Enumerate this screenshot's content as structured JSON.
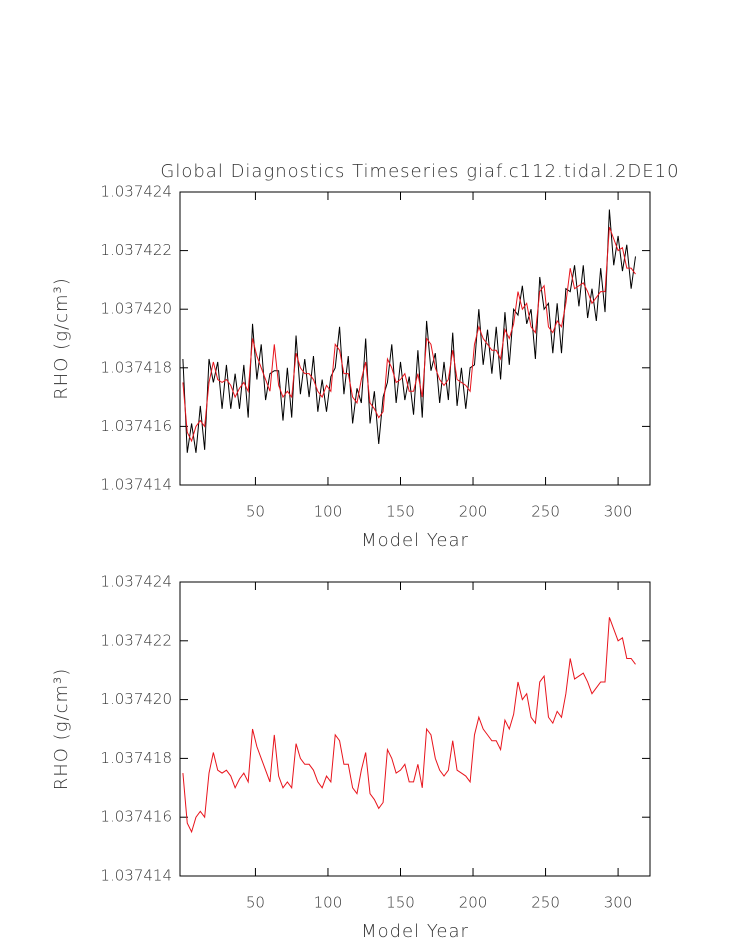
{
  "chart_data": [
    {
      "type": "line",
      "title": "Global Diagnostics Timeseries giaf.c112.tidal.2DE10",
      "xlabel": "Model Year",
      "ylabel": "RHO (g/cm³)",
      "xlim": [
        -2,
        322
      ],
      "xticks": [
        50,
        100,
        150,
        200,
        250,
        300
      ],
      "ylim": [
        1.037414,
        1.037424
      ],
      "yticks": [
        1.037414,
        1.037416,
        1.037418,
        {
          "value": 1.03742,
          "label": "1.037420"
        },
        1.037422,
        1.037424
      ],
      "x": [
        0,
        3,
        6,
        9,
        12,
        15,
        18,
        21,
        24,
        27,
        30,
        33,
        36,
        39,
        42,
        45,
        48,
        51,
        54,
        57,
        60,
        63,
        66,
        69,
        72,
        75,
        78,
        81,
        84,
        87,
        90,
        93,
        96,
        99,
        102,
        105,
        108,
        111,
        114,
        117,
        120,
        123,
        126,
        129,
        132,
        135,
        138,
        141,
        144,
        147,
        150,
        153,
        156,
        159,
        162,
        165,
        168,
        171,
        174,
        177,
        180,
        183,
        186,
        189,
        192,
        195,
        198,
        201,
        204,
        207,
        210,
        213,
        216,
        219,
        222,
        225,
        228,
        231,
        234,
        237,
        240,
        243,
        246,
        249,
        252,
        255,
        258,
        261,
        264,
        267,
        270,
        273,
        276,
        279,
        282,
        285,
        288,
        291,
        294,
        297,
        300,
        303,
        306,
        309,
        312
      ],
      "series": [
        {
          "color": "#000000",
          "values": [
            1.0374183,
            1.0374151,
            1.0374161,
            1.0374151,
            1.0374167,
            1.0374152,
            1.0374183,
            1.0374175,
            1.0374182,
            1.0374166,
            1.0374181,
            1.0374166,
            1.0374178,
            1.0374166,
            1.0374181,
            1.0374163,
            1.0374195,
            1.0374176,
            1.0374188,
            1.0374169,
            1.0374178,
            1.0374179,
            1.0374179,
            1.0374162,
            1.037418,
            1.0374163,
            1.0374191,
            1.0374171,
            1.0374183,
            1.037417,
            1.0374184,
            1.0374165,
            1.0374176,
            1.0374165,
            1.0374177,
            1.037418,
            1.0374194,
            1.0374171,
            1.0374184,
            1.0374161,
            1.0374173,
            1.0374168,
            1.037419,
            1.0374161,
            1.0374172,
            1.0374154,
            1.037417,
            1.0374175,
            1.0374188,
            1.0374168,
            1.0374182,
            1.0374169,
            1.0374177,
            1.0374164,
            1.0374186,
            1.0374163,
            1.0374196,
            1.0374179,
            1.0374185,
            1.0374168,
            1.0374182,
            1.0374169,
            1.0374192,
            1.0374167,
            1.037418,
            1.0374166,
            1.037418,
            1.0374181,
            1.03742,
            1.0374181,
            1.0374193,
            1.0374178,
            1.0374194,
            1.0374176,
            1.0374199,
            1.0374181,
            1.03742,
            1.0374198,
            1.0374208,
            1.0374195,
            1.03742,
            1.0374183,
            1.0374211,
            1.03742,
            1.0374202,
            1.0374185,
            1.0374202,
            1.0374185,
            1.0374207,
            1.0374206,
            1.0374215,
            1.0374201,
            1.0374215,
            1.0374197,
            1.0374207,
            1.0374196,
            1.0374214,
            1.0374199,
            1.0374234,
            1.0374215,
            1.0374225,
            1.0374213,
            1.0374222,
            1.0374207,
            1.0374218
          ]
        },
        {
          "color": "#e8141c",
          "values": [
            1.0374175,
            1.0374158,
            1.0374155,
            1.037416,
            1.0374162,
            1.037416,
            1.0374175,
            1.0374182,
            1.0374176,
            1.0374175,
            1.0374176,
            1.0374174,
            1.037417,
            1.0374173,
            1.0374175,
            1.0374172,
            1.037419,
            1.0374184,
            1.037418,
            1.0374176,
            1.0374172,
            1.0374188,
            1.0374174,
            1.037417,
            1.0374172,
            1.037417,
            1.0374185,
            1.037418,
            1.0374178,
            1.0374178,
            1.0374176,
            1.0374172,
            1.037417,
            1.0374174,
            1.0374172,
            1.0374188,
            1.0374186,
            1.0374178,
            1.0374178,
            1.037417,
            1.0374168,
            1.0374176,
            1.0374182,
            1.0374168,
            1.0374166,
            1.0374163,
            1.0374165,
            1.0374183,
            1.037418,
            1.0374175,
            1.0374176,
            1.0374178,
            1.0374172,
            1.0374172,
            1.0374178,
            1.037417,
            1.037419,
            1.0374188,
            1.037418,
            1.0374176,
            1.0374174,
            1.0374176,
            1.0374186,
            1.0374176,
            1.0374175,
            1.0374174,
            1.0374172,
            1.0374188,
            1.0374194,
            1.037419,
            1.0374188,
            1.0374186,
            1.0374186,
            1.0374183,
            1.0374193,
            1.037419,
            1.0374195,
            1.0374206,
            1.03742,
            1.0374202,
            1.0374194,
            1.0374192,
            1.0374206,
            1.0374208,
            1.0374194,
            1.0374192,
            1.0374196,
            1.0374194,
            1.0374202,
            1.0374214,
            1.0374207,
            1.0374208,
            1.0374209,
            1.0374206,
            1.0374202,
            1.0374204,
            1.0374206,
            1.0374206,
            1.0374228,
            1.0374224,
            1.037422,
            1.0374221,
            1.0374214,
            1.0374214,
            1.0374212
          ]
        }
      ]
    },
    {
      "type": "line",
      "xlabel": "Model Year",
      "ylabel": "RHO (g/cm³)",
      "xlim": [
        -2,
        322
      ],
      "xticks": [
        50,
        100,
        150,
        200,
        250,
        300
      ],
      "ylim": [
        1.037414,
        1.037424
      ],
      "yticks": [
        1.037414,
        1.037416,
        1.037418,
        {
          "value": 1.03742,
          "label": "1.037420"
        },
        1.037422,
        1.037424
      ],
      "x": [
        0,
        3,
        6,
        9,
        12,
        15,
        18,
        21,
        24,
        27,
        30,
        33,
        36,
        39,
        42,
        45,
        48,
        51,
        54,
        57,
        60,
        63,
        66,
        69,
        72,
        75,
        78,
        81,
        84,
        87,
        90,
        93,
        96,
        99,
        102,
        105,
        108,
        111,
        114,
        117,
        120,
        123,
        126,
        129,
        132,
        135,
        138,
        141,
        144,
        147,
        150,
        153,
        156,
        159,
        162,
        165,
        168,
        171,
        174,
        177,
        180,
        183,
        186,
        189,
        192,
        195,
        198,
        201,
        204,
        207,
        210,
        213,
        216,
        219,
        222,
        225,
        228,
        231,
        234,
        237,
        240,
        243,
        246,
        249,
        252,
        255,
        258,
        261,
        264,
        267,
        270,
        273,
        276,
        279,
        282,
        285,
        288,
        291,
        294,
        297,
        300,
        303,
        306,
        309,
        312
      ],
      "series": [
        {
          "color": "#e8141c",
          "values": [
            1.0374175,
            1.0374158,
            1.0374155,
            1.037416,
            1.0374162,
            1.037416,
            1.0374175,
            1.0374182,
            1.0374176,
            1.0374175,
            1.0374176,
            1.0374174,
            1.037417,
            1.0374173,
            1.0374175,
            1.0374172,
            1.037419,
            1.0374184,
            1.037418,
            1.0374176,
            1.0374172,
            1.0374188,
            1.0374174,
            1.037417,
            1.0374172,
            1.037417,
            1.0374185,
            1.037418,
            1.0374178,
            1.0374178,
            1.0374176,
            1.0374172,
            1.037417,
            1.0374174,
            1.0374172,
            1.0374188,
            1.0374186,
            1.0374178,
            1.0374178,
            1.037417,
            1.0374168,
            1.0374176,
            1.0374182,
            1.0374168,
            1.0374166,
            1.0374163,
            1.0374165,
            1.0374183,
            1.037418,
            1.0374175,
            1.0374176,
            1.0374178,
            1.0374172,
            1.0374172,
            1.0374178,
            1.037417,
            1.037419,
            1.0374188,
            1.037418,
            1.0374176,
            1.0374174,
            1.0374176,
            1.0374186,
            1.0374176,
            1.0374175,
            1.0374174,
            1.0374172,
            1.0374188,
            1.0374194,
            1.037419,
            1.0374188,
            1.0374186,
            1.0374186,
            1.0374183,
            1.0374193,
            1.037419,
            1.0374195,
            1.0374206,
            1.03742,
            1.0374202,
            1.0374194,
            1.0374192,
            1.0374206,
            1.0374208,
            1.0374194,
            1.0374192,
            1.0374196,
            1.0374194,
            1.0374202,
            1.0374214,
            1.0374207,
            1.0374208,
            1.0374209,
            1.0374206,
            1.0374202,
            1.0374204,
            1.0374206,
            1.0374206,
            1.0374228,
            1.0374224,
            1.037422,
            1.0374221,
            1.0374214,
            1.0374214,
            1.0374212
          ]
        }
      ]
    }
  ]
}
